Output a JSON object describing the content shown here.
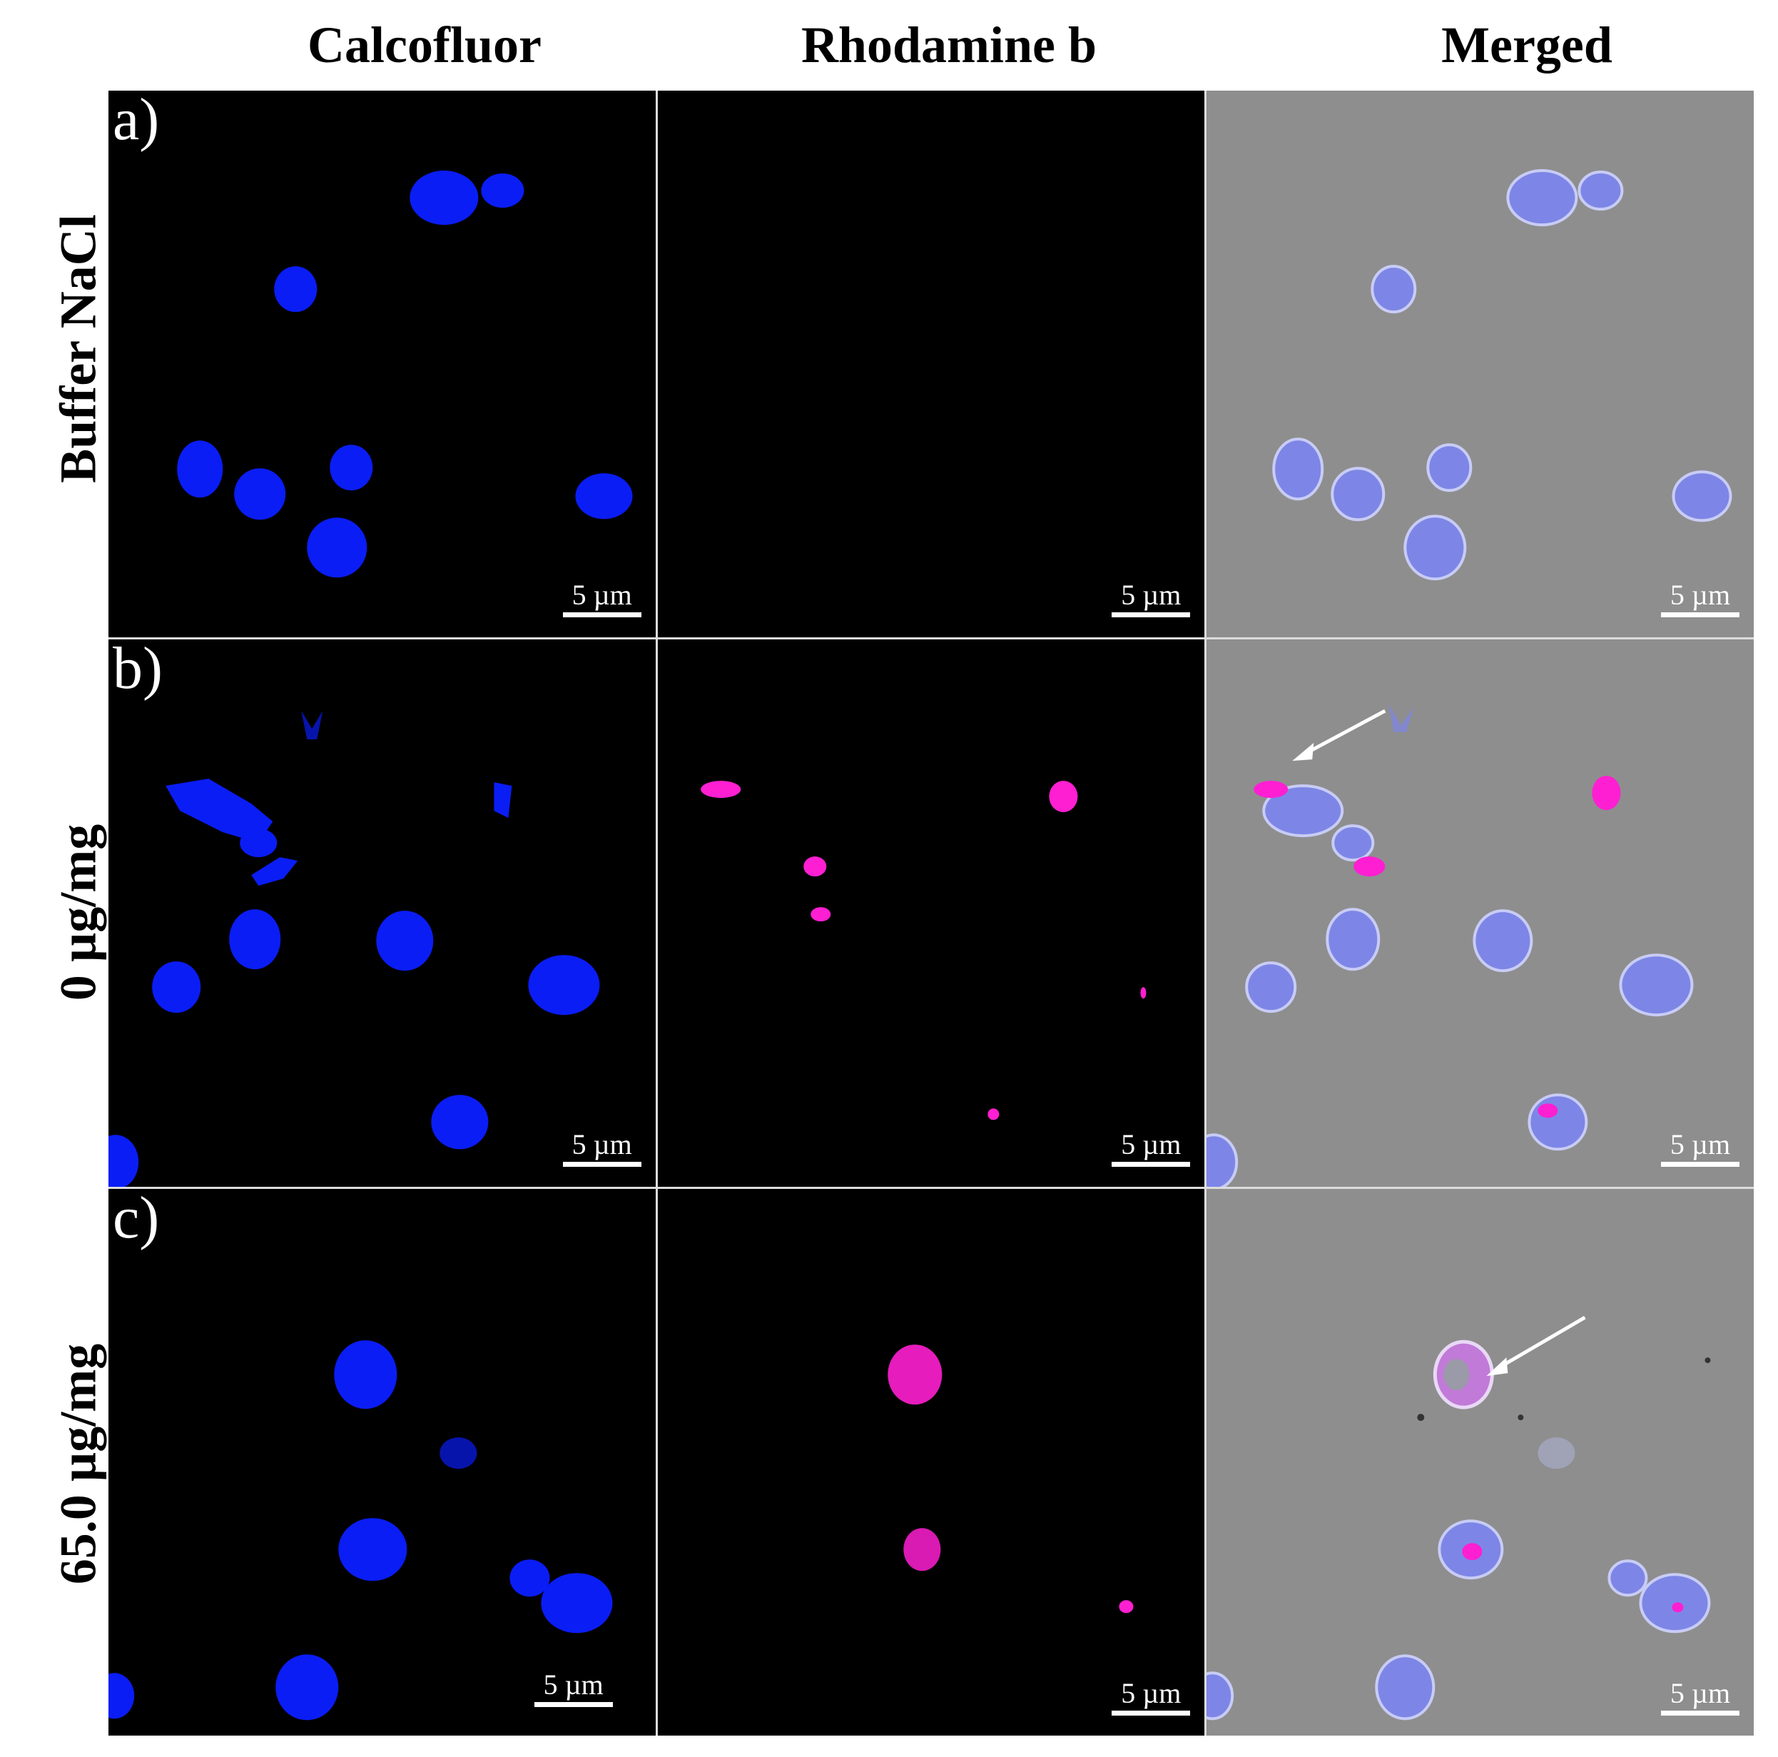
{
  "columns": [
    "Calcofluor",
    "Rhodamine b",
    "Merged"
  ],
  "rows": [
    {
      "letter": "a)",
      "label": "Buffer NaCl"
    },
    {
      "letter": "b)",
      "label": "0 µg/mg"
    },
    {
      "letter": "c)",
      "label": "65.0 µg/mg"
    }
  ],
  "scale_bar": "5 µm",
  "colors": {
    "calcofluor": "#0a1df5",
    "rhodamine": "#ff1fd2",
    "merged_cell": "#7d86e6",
    "merged_bg": "#8e8e8e"
  }
}
